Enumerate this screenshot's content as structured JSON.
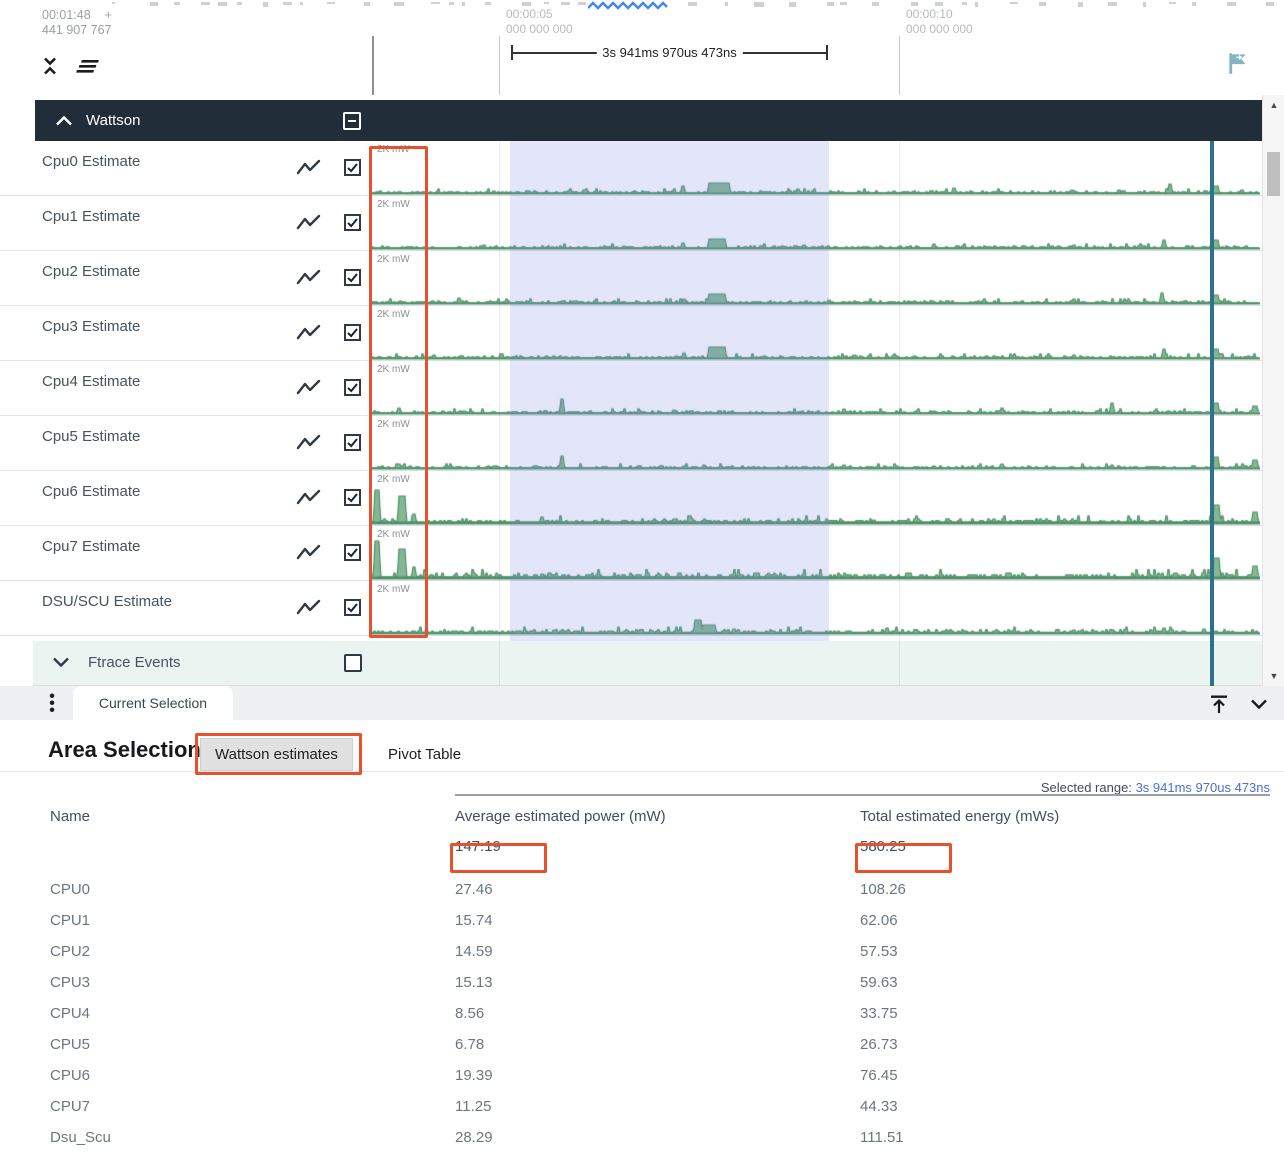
{
  "accent_colors": {
    "annotation": "#e8512d",
    "chart_green": "#4d8f68",
    "chart_fill": "#82b493",
    "selection": "rgba(129,138,226,0.22)",
    "marker_teal": "#2d7389",
    "header_dark": "#222d3a",
    "link_blue": "#4a6fd4",
    "flag_teal": "#84b3c2"
  },
  "icons": {
    "collapse_all": "unfold-less-icon",
    "track_filter": "filter-lines-icon",
    "group_collapse": "chevron-up-icon",
    "track_graph": "line-chart-icon",
    "flag": "flag-arrow-icon",
    "menu": "kebab-vertical-icon",
    "panel_to_top": "align-top-arrow-icon",
    "panel_collapse": "chevron-down-icon",
    "scroll_up": "triangle-up-icon",
    "scroll_down": "triangle-down-icon",
    "ftrace_expand": "chevron-down-icon"
  },
  "ruler": {
    "abs_time": "00:01:48",
    "abs_plus": "+",
    "abs_frac": "441 907 767",
    "ticks": [
      {
        "time": "00:00:05",
        "frac": "000 000 000"
      },
      {
        "time": "00:00:10",
        "frac": "000 000 000"
      }
    ],
    "span_label": "3s 941ms 970us 473ns"
  },
  "group": {
    "name": "Wattson",
    "checkbox_state": "indeterminate"
  },
  "tracks": [
    {
      "name": "Cpu0 Estimate",
      "scale": "2K mW",
      "checked": true,
      "seed": 11,
      "amp": 1.6,
      "base": 2,
      "spikes": [
        [
          120,
          3
        ],
        [
          210,
          4
        ],
        [
          309,
          8
        ],
        [
          336,
          11,
          22
        ],
        [
          424,
          5
        ],
        [
          520,
          3
        ],
        [
          580,
          6
        ],
        [
          698,
          4
        ],
        [
          745,
          4
        ],
        [
          796,
          10
        ],
        [
          841,
          8,
          6
        ],
        [
          868,
          4
        ]
      ]
    },
    {
      "name": "Cpu1 Estimate",
      "scale": "2K mW",
      "checked": true,
      "seed": 22,
      "amp": 1.6,
      "base": 2,
      "spikes": [
        [
          110,
          4
        ],
        [
          250,
          3
        ],
        [
          309,
          6
        ],
        [
          336,
          10,
          18
        ],
        [
          430,
          4
        ],
        [
          560,
          5
        ],
        [
          640,
          3
        ],
        [
          700,
          4
        ],
        [
          790,
          9
        ],
        [
          841,
          9,
          6
        ]
      ]
    },
    {
      "name": "Cpu2 Estimate",
      "scale": "2K mW",
      "checked": true,
      "seed": 33,
      "amp": 1.6,
      "base": 2,
      "spikes": [
        [
          85,
          6
        ],
        [
          200,
          3
        ],
        [
          310,
          5
        ],
        [
          336,
          10,
          18
        ],
        [
          455,
          4
        ],
        [
          610,
          4
        ],
        [
          700,
          5
        ],
        [
          755,
          3
        ],
        [
          788,
          11
        ],
        [
          841,
          9,
          6
        ]
      ]
    },
    {
      "name": "Cpu3 Estimate",
      "scale": "2K mW",
      "checked": true,
      "seed": 44,
      "amp": 1.6,
      "base": 2,
      "spikes": [
        [
          60,
          4
        ],
        [
          180,
          3
        ],
        [
          310,
          6
        ],
        [
          336,
          12,
          18
        ],
        [
          480,
          4
        ],
        [
          620,
          3
        ],
        [
          700,
          4
        ],
        [
          790,
          10
        ],
        [
          841,
          10,
          6
        ]
      ]
    },
    {
      "name": "Cpu4 Estimate",
      "scale": "2K mW",
      "checked": true,
      "seed": 55,
      "amp": 1.6,
      "base": 2,
      "spikes": [
        [
          25,
          6
        ],
        [
          90,
          3
        ],
        [
          188,
          15
        ],
        [
          300,
          4
        ],
        [
          470,
          5
        ],
        [
          560,
          3
        ],
        [
          628,
          6
        ],
        [
          700,
          3
        ],
        [
          738,
          11
        ],
        [
          841,
          11,
          6
        ],
        [
          880,
          8,
          6
        ]
      ]
    },
    {
      "name": "Cpu5 Estimate",
      "scale": "2K mW",
      "checked": true,
      "seed": 66,
      "amp": 1.6,
      "base": 2,
      "spikes": [
        [
          25,
          5
        ],
        [
          120,
          3
        ],
        [
          188,
          13
        ],
        [
          330,
          4
        ],
        [
          470,
          4
        ],
        [
          560,
          3
        ],
        [
          628,
          5
        ],
        [
          738,
          4
        ],
        [
          841,
          12,
          6
        ],
        [
          880,
          9,
          6
        ]
      ]
    },
    {
      "name": "Cpu6 Estimate",
      "scale": "2K mW",
      "checked": true,
      "seed": 77,
      "amp": 2.6,
      "base": 3,
      "spikes": [
        [
          2,
          34,
          6
        ],
        [
          26,
          28,
          8
        ],
        [
          40,
          10
        ],
        [
          168,
          7
        ],
        [
          300,
          5
        ],
        [
          500,
          4
        ],
        [
          620,
          5
        ],
        [
          730,
          3
        ],
        [
          841,
          19,
          7
        ],
        [
          880,
          12,
          6
        ]
      ]
    },
    {
      "name": "Cpu7 Estimate",
      "scale": "2K mW",
      "checked": true,
      "seed": 88,
      "amp": 3.0,
      "base": 3,
      "spikes": [
        [
          2,
          38,
          6
        ],
        [
          26,
          30,
          8
        ],
        [
          40,
          12
        ],
        [
          100,
          6
        ],
        [
          168,
          5
        ],
        [
          430,
          4
        ],
        [
          620,
          4
        ],
        [
          730,
          3
        ],
        [
          841,
          21,
          7
        ],
        [
          880,
          13,
          6
        ]
      ]
    },
    {
      "name": "DSU/SCU Estimate",
      "scale": "2K mW",
      "checked": true,
      "seed": 99,
      "amp": 2.2,
      "base": 2,
      "spikes": [
        [
          80,
          3
        ],
        [
          180,
          4
        ],
        [
          322,
          14,
          8
        ],
        [
          330,
          9,
          14
        ],
        [
          360,
          5
        ],
        [
          513,
          6
        ],
        [
          620,
          3
        ],
        [
          700,
          4
        ],
        [
          790,
          6
        ],
        [
          830,
          5
        ]
      ]
    }
  ],
  "ftrace": {
    "name": "Ftrace Events",
    "checked": false
  },
  "tabbar": {
    "current_tab": "Current Selection"
  },
  "details": {
    "title": "Area Selection",
    "tabs": [
      {
        "label": "Wattson estimates",
        "active": true
      },
      {
        "label": "Pivot Table",
        "active": false
      }
    ],
    "selected_range_label": "Selected range:",
    "selected_range_value": "3s 941ms 970us 473ns",
    "table": {
      "columns": [
        "Name",
        "Average estimated power (mW)",
        "Total estimated energy (mWs)"
      ],
      "totals": {
        "avg": "147.19",
        "total": "580.25"
      },
      "rows": [
        {
          "name": "CPU0",
          "avg": "27.46",
          "total": "108.26"
        },
        {
          "name": "CPU1",
          "avg": "15.74",
          "total": "62.06"
        },
        {
          "name": "CPU2",
          "avg": "14.59",
          "total": "57.53"
        },
        {
          "name": "CPU3",
          "avg": "15.13",
          "total": "59.63"
        },
        {
          "name": "CPU4",
          "avg": "8.56",
          "total": "33.75"
        },
        {
          "name": "CPU5",
          "avg": "6.78",
          "total": "26.73"
        },
        {
          "name": "CPU6",
          "avg": "19.39",
          "total": "76.45"
        },
        {
          "name": "CPU7",
          "avg": "11.25",
          "total": "44.33"
        },
        {
          "name": "Dsu_Scu",
          "avg": "28.29",
          "total": "111.51"
        }
      ]
    }
  }
}
